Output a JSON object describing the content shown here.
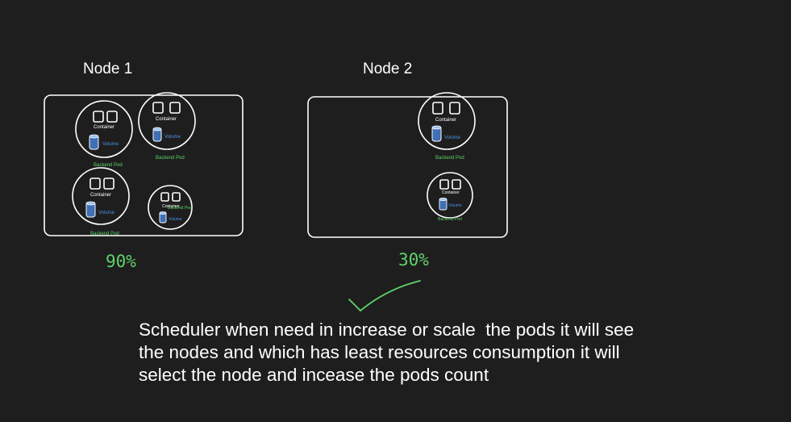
{
  "nodes": [
    {
      "title": "Node 1",
      "usage": "90%",
      "pods": [
        {
          "container_label": "Container",
          "volume_label": "Volume",
          "pod_label": "Backend Pod"
        },
        {
          "container_label": "Container",
          "volume_label": "Volume",
          "pod_label": "Backend Pod"
        },
        {
          "container_label": "Container",
          "volume_label": "Volume",
          "pod_label": "Backend Pod"
        },
        {
          "container_label": "Container",
          "volume_label": "Volume",
          "pod_label": "Backend Pod"
        }
      ]
    },
    {
      "title": "Node 2",
      "usage": "30%",
      "pods": [
        {
          "container_label": "Container",
          "volume_label": "Volume",
          "pod_label": "Backend Pod"
        },
        {
          "container_label": "Container",
          "volume_label": "Volume",
          "pod_label": "Backend Pod"
        }
      ]
    }
  ],
  "note": {
    "lines": [
      "Scheduler when need in increase or scale  the pods it will see",
      "the nodes and which has least resources consumption it will",
      "select the node and incease the pods count"
    ]
  },
  "colors": {
    "background": "#1e1e1e",
    "stroke": "#ffffff",
    "accent_green": "#5fd36a",
    "volume_blue": "#4a90e2"
  },
  "icons": [
    "container-icon",
    "volume-cylinder-icon",
    "checkmark-icon"
  ]
}
